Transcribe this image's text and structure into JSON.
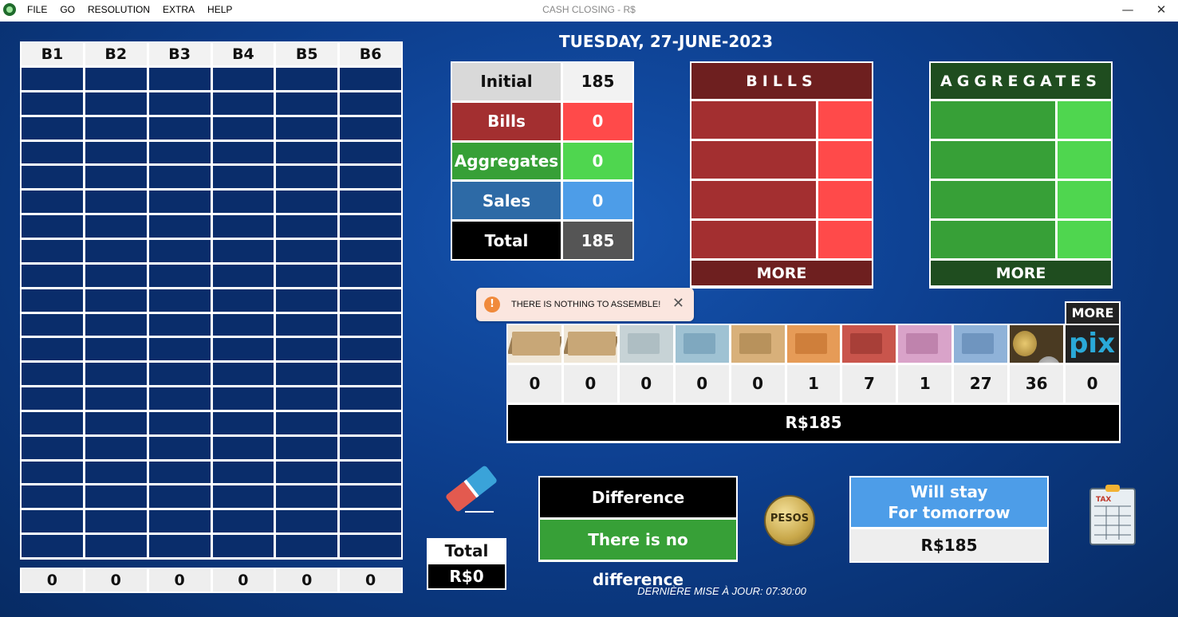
{
  "window": {
    "title": "CASH CLOSING - R$",
    "menu": [
      "FILE",
      "GO",
      "RESOLUTION",
      "EXTRA",
      "HELP"
    ],
    "minimize": "—",
    "close": "✕"
  },
  "date": "TUESDAY, 27-JUNE-2023",
  "boxes": {
    "headers": [
      "B1",
      "B2",
      "B3",
      "B4",
      "B5",
      "B6"
    ],
    "totals": [
      "0",
      "0",
      "0",
      "0",
      "0",
      "0"
    ]
  },
  "summary": {
    "initial_label": "Initial",
    "initial_value": "185",
    "bills_label": "Bills",
    "bills_value": "0",
    "aggregates_label": "Aggregates",
    "aggregates_value": "0",
    "sales_label": "Sales",
    "sales_value": "0",
    "total_label": "Total",
    "total_value": "185"
  },
  "bills_panel": {
    "title": "BILLS",
    "more": "MORE"
  },
  "aggregates_panel": {
    "title": "AGGREGATES",
    "more": "MORE"
  },
  "toast": {
    "icon": "!",
    "message": "THERE IS NOTHING TO ASSEMBLE!",
    "close": "✕"
  },
  "money": {
    "more": "MORE",
    "counts": [
      "0",
      "0",
      "0",
      "0",
      "0",
      "1",
      "7",
      "1",
      "27",
      "36",
      "0"
    ],
    "total": "R$185",
    "pix_label": "pix",
    "colors": {
      "stack": "#c8a777",
      "note_200": "#c7d3d6",
      "note_100": "#9fc2d3",
      "note_50": "#d8b07a",
      "note_20": "#e69b57",
      "note_10": "#c9554c",
      "note_5": "#d9a3c9",
      "note_2": "#8fb2d8",
      "coins": "#c7a24b",
      "pix_bg": "#222222"
    }
  },
  "bottom": {
    "total_label": "Total",
    "total_value": "R$0",
    "difference_label": "Difference",
    "difference_value": "There is no difference",
    "pesos_label": "PESOS",
    "stay_line1": "Will stay",
    "stay_line2": "For tomorrow",
    "stay_value": "R$185",
    "tax_label": "TAX",
    "updated": "DERNIÈRE MISE À JOUR: 07:30:00"
  }
}
